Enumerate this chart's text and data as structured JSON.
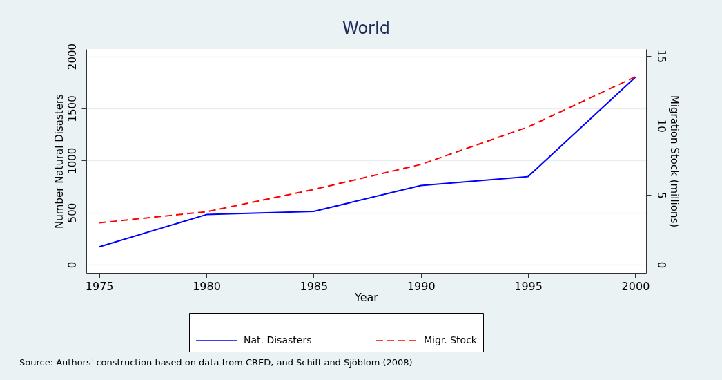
{
  "chart_data": {
    "type": "line",
    "title": "World",
    "xlabel": "Year",
    "ylabel": "Number Natural Disasters",
    "y2label": "Migration Stock (millions)",
    "x": [
      1975,
      1980,
      1985,
      1990,
      1995,
      2000
    ],
    "series": [
      {
        "name": "Nat. Disasters",
        "color": "#0000ff",
        "line_style": "solid",
        "values": [
          170,
          480,
          510,
          760,
          845,
          1800
        ]
      },
      {
        "name": "Migr. Stock",
        "color": "#ff0000",
        "line_style": "dashed",
        "axis": "y2",
        "values": [
          3.0,
          3.8,
          5.4,
          7.2,
          9.9,
          13.5
        ]
      }
    ],
    "xlim": [
      1974.4,
      2000.5
    ],
    "xticks": [
      1975,
      1980,
      1985,
      1990,
      1995,
      2000
    ],
    "ylim": [
      -80,
      2070
    ],
    "yticks": [
      0,
      500,
      1000,
      1500,
      2000
    ],
    "y2lim": [
      -0.6,
      15.5
    ],
    "y2ticks": [
      0,
      5,
      10,
      15
    ],
    "grid": "y",
    "legend": "bottom",
    "annotations": [
      "Source: Authors' construction based on data from CRED, and Schiff and Sjöblom (2008)"
    ]
  }
}
